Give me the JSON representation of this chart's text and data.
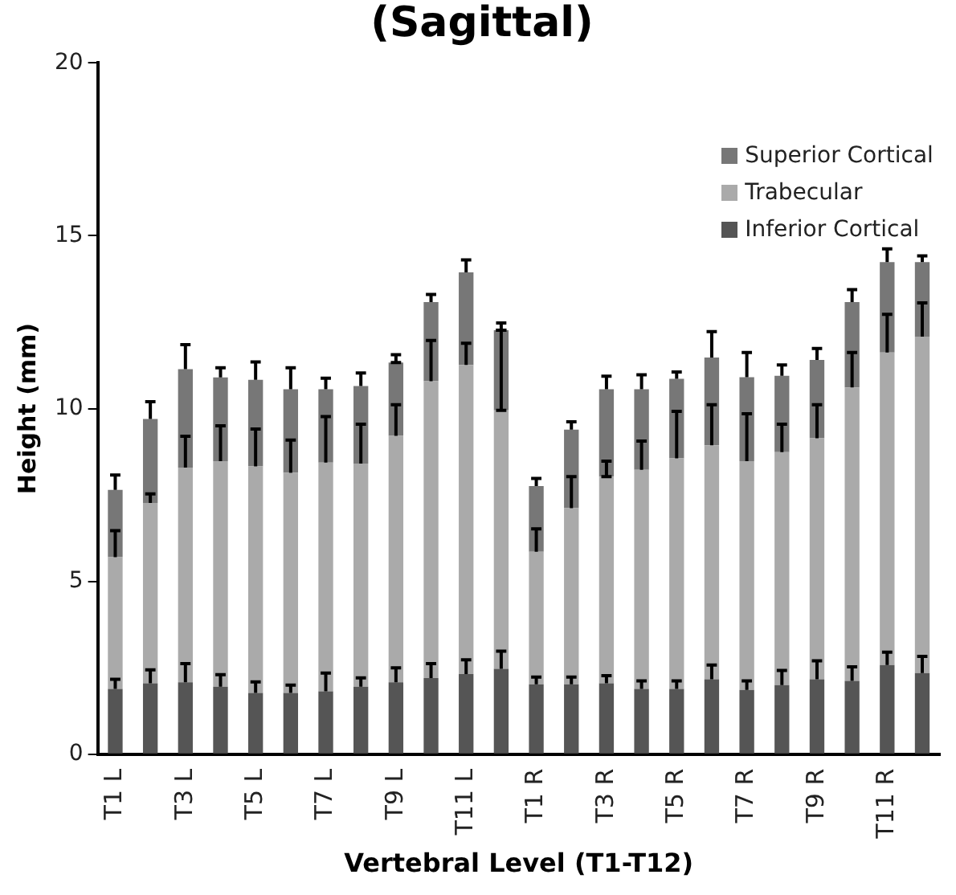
{
  "chart_data": {
    "type": "bar",
    "title": "(Sagittal)",
    "xlabel": "Vertebral Level (T1-T12)",
    "ylabel": "Height (mm)",
    "stacked": true,
    "legend": "top right",
    "grid": false,
    "categories": [
      "T1 L",
      null,
      "T3 L",
      null,
      "T5 L",
      null,
      "T7 L",
      null,
      "T9 L",
      null,
      "T11 L",
      null,
      "T1 R",
      null,
      "T3 R",
      null,
      "T5 R",
      null,
      "T7 R",
      null,
      "T9 R",
      null,
      "T11 R",
      null
    ],
    "ylim": [
      0,
      20
    ],
    "yticks": [
      0,
      5,
      10,
      15,
      20
    ],
    "series": [
      {
        "name": "Inferior Cortical",
        "color": "#555555",
        "values": [
          1.89,
          2.05,
          2.08,
          1.95,
          1.77,
          1.77,
          1.82,
          1.95,
          2.08,
          2.2,
          2.32,
          2.47,
          2.02,
          2.02,
          2.05,
          1.89,
          1.89,
          2.17,
          1.86,
          2.0,
          2.17,
          2.12,
          2.58,
          2.35
        ],
        "errors": [
          [
            1.89,
            2.17
          ],
          [
            2.05,
            2.44
          ],
          [
            2.08,
            2.62
          ],
          [
            1.95,
            2.3
          ],
          [
            1.77,
            2.09
          ],
          [
            1.77,
            2.0
          ],
          [
            1.82,
            2.35
          ],
          [
            1.95,
            2.21
          ],
          [
            2.08,
            2.5
          ],
          [
            2.2,
            2.62
          ],
          [
            2.32,
            2.73
          ],
          [
            2.47,
            2.98
          ],
          [
            2.02,
            2.23
          ],
          [
            2.02,
            2.23
          ],
          [
            2.05,
            2.27
          ],
          [
            1.89,
            2.12
          ],
          [
            1.89,
            2.12
          ],
          [
            2.17,
            2.58
          ],
          [
            1.86,
            2.12
          ],
          [
            2.0,
            2.42
          ],
          [
            2.17,
            2.7
          ],
          [
            2.12,
            2.53
          ],
          [
            2.58,
            2.95
          ],
          [
            2.35,
            2.83
          ]
        ]
      },
      {
        "name": "Trabecular",
        "color": "#aaaaaa",
        "values": [
          3.81,
          5.22,
          6.21,
          6.53,
          6.56,
          6.37,
          6.62,
          6.46,
          7.13,
          8.59,
          8.94,
          7.48,
          3.84,
          5.1,
          5.98,
          6.34,
          6.67,
          6.77,
          6.62,
          6.74,
          6.97,
          8.49,
          9.04,
          9.73
        ],
        "errors": [
          [
            5.7,
            6.47
          ],
          [
            7.27,
            7.53
          ],
          [
            8.29,
            9.2
          ],
          [
            8.48,
            9.5
          ],
          [
            8.33,
            9.41
          ],
          [
            8.14,
            9.09
          ],
          [
            8.44,
            9.77
          ],
          [
            8.41,
            9.55
          ],
          [
            9.21,
            10.11
          ],
          [
            10.79,
            11.97
          ],
          [
            11.26,
            11.89
          ],
          [
            9.95,
            12.27
          ],
          [
            5.86,
            6.52
          ],
          [
            7.12,
            8.03
          ],
          [
            8.03,
            8.48
          ],
          [
            8.23,
            9.06
          ],
          [
            8.56,
            9.92
          ],
          [
            8.94,
            10.11
          ],
          [
            8.48,
            9.85
          ],
          [
            8.74,
            9.55
          ],
          [
            9.14,
            10.11
          ],
          [
            10.61,
            11.62
          ],
          [
            11.62,
            12.73
          ],
          [
            12.08,
            13.06
          ]
        ]
      },
      {
        "name": "Superior Cortical",
        "color": "#777777",
        "values": [
          1.95,
          2.43,
          2.85,
          2.42,
          2.5,
          2.42,
          2.12,
          2.24,
          2.12,
          2.29,
          2.68,
          2.32,
          1.9,
          2.27,
          2.53,
          2.33,
          2.3,
          2.54,
          2.43,
          2.21,
          2.27,
          2.47,
          2.62,
          2.16
        ],
        "errors": [
          [
            7.65,
            8.08
          ],
          [
            9.7,
            10.2
          ],
          [
            11.14,
            11.85
          ],
          [
            10.9,
            11.18
          ],
          [
            10.83,
            11.35
          ],
          [
            10.56,
            11.18
          ],
          [
            10.56,
            10.88
          ],
          [
            10.65,
            11.03
          ],
          [
            11.33,
            11.56
          ],
          [
            13.08,
            13.3
          ],
          [
            13.94,
            14.3
          ],
          [
            12.27,
            12.48
          ],
          [
            7.76,
            7.98
          ],
          [
            9.39,
            9.62
          ],
          [
            10.56,
            10.94
          ],
          [
            10.56,
            10.98
          ],
          [
            10.86,
            11.06
          ],
          [
            11.48,
            12.23
          ],
          [
            10.91,
            11.62
          ],
          [
            10.95,
            11.26
          ],
          [
            11.41,
            11.74
          ],
          [
            13.08,
            13.44
          ],
          [
            14.24,
            14.62
          ],
          [
            14.24,
            14.42
          ]
        ]
      }
    ]
  }
}
